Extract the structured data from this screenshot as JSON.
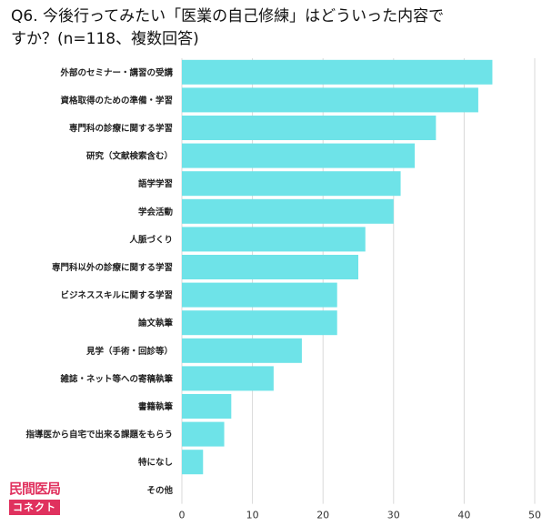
{
  "title": "Q6. 今後行ってみたい「医業の自己修練」はどういった内容ですか？(n=118、複数回答)",
  "logo": {
    "top": "民間医局",
    "bottom": "コネクト"
  },
  "colors": {
    "bar": "#6ee3e8",
    "grid": "#d9d9d9",
    "brand": "#e0315e"
  },
  "chart_data": {
    "type": "bar",
    "orientation": "horizontal",
    "categories": [
      "外部のセミナー・講習の受講",
      "資格取得のための準備・学習",
      "専門科の診療に関する学習",
      "研究（文献検索含む）",
      "語学学習",
      "学会活動",
      "人脈づくり",
      "専門科以外の診療に関する学習",
      "ビジネススキルに関する学習",
      "論文執筆",
      "見学（手術・回診等）",
      "雑誌・ネット等への寄稿執筆",
      "書籍執筆",
      "指導医から自宅で出来る課題をもらう",
      "特になし",
      "その他"
    ],
    "values": [
      44,
      42,
      36,
      33,
      31,
      30,
      26,
      25,
      22,
      22,
      17,
      13,
      7,
      6,
      3,
      0
    ],
    "xlim": [
      0,
      50
    ],
    "xticks": [
      0,
      10,
      20,
      30,
      40,
      50
    ],
    "grid": true
  }
}
